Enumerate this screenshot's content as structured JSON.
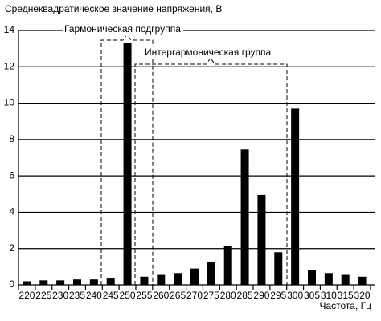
{
  "chart_data": {
    "type": "bar",
    "title": "Среднеквадратическое значение напряжения, В",
    "x_label": "Частота, Гц",
    "annotations": [
      "Гармоническая подгруппа",
      "Интергармоническая группа"
    ],
    "categories": [
      "220",
      "225",
      "230",
      "235",
      "240",
      "245",
      "250",
      "255",
      "260",
      "265",
      "270",
      "275",
      "280",
      "285",
      "290",
      "295",
      "300",
      "305",
      "310",
      "315",
      "320"
    ],
    "values": [
      0.2,
      0.25,
      0.25,
      0.3,
      0.3,
      0.35,
      13.3,
      0.45,
      0.55,
      0.65,
      0.9,
      1.25,
      2.15,
      7.45,
      4.95,
      1.8,
      9.7,
      0.8,
      0.65,
      0.55,
      0.45
    ],
    "color": "#000000",
    "ylim": [
      0,
      14
    ],
    "yticks": [
      0,
      2,
      4,
      6,
      8,
      10,
      12,
      14
    ],
    "grid": true
  }
}
